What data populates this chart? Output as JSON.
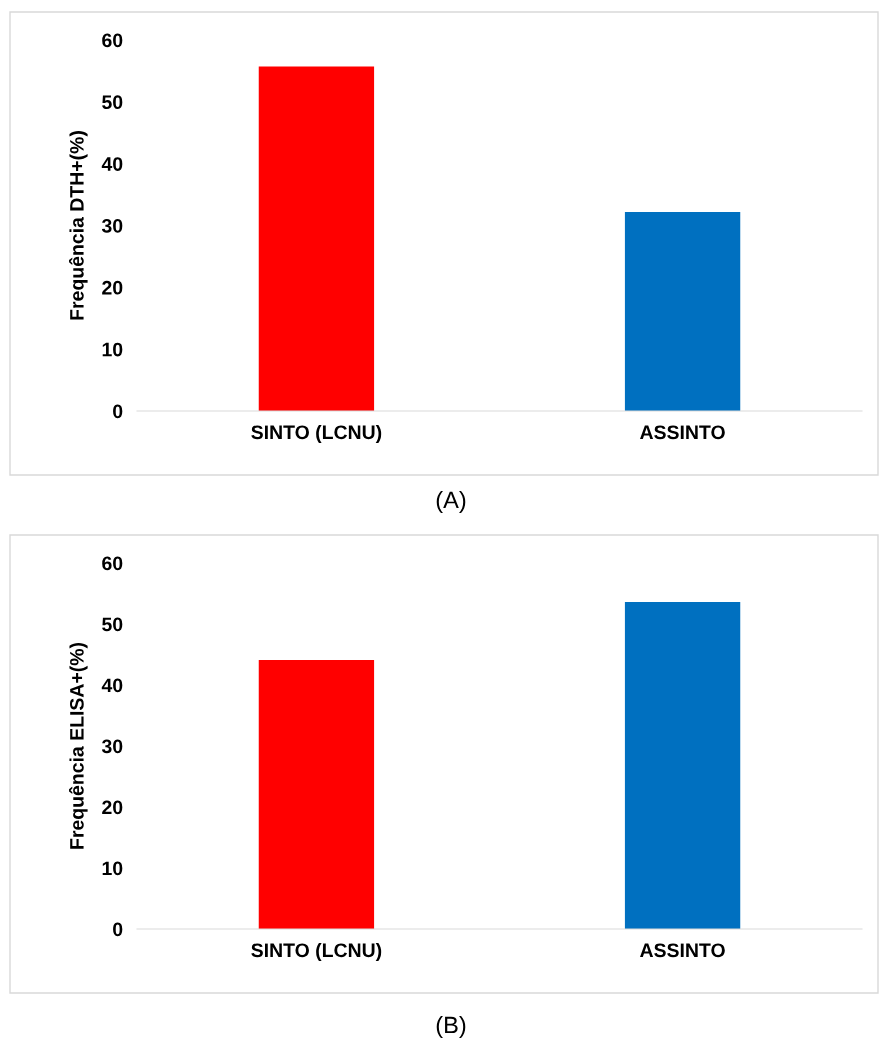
{
  "chart_data": [
    {
      "type": "bar",
      "ylabel": "Frequência DTH+(%)",
      "categories": [
        "SINTO (LCNU)",
        "ASSINTO"
      ],
      "values": [
        55.7,
        32.2
      ],
      "colors": [
        "#ff0000",
        "#0070c0"
      ],
      "ylim": [
        0,
        60
      ],
      "yticks": [
        0,
        10,
        20,
        30,
        40,
        50,
        60
      ],
      "grid": false,
      "annotations": [
        "(A)"
      ]
    },
    {
      "type": "bar",
      "ylabel": "Frequência ELISA+(%)",
      "categories": [
        "SINTO (LCNU)",
        "ASSINTO"
      ],
      "values": [
        44.1,
        53.6
      ],
      "colors": [
        "#ff0000",
        "#0070c0"
      ],
      "ylim": [
        0,
        60
      ],
      "yticks": [
        0,
        10,
        20,
        30,
        40,
        50,
        60
      ],
      "grid": false,
      "annotations": [
        "(B)"
      ]
    }
  ]
}
